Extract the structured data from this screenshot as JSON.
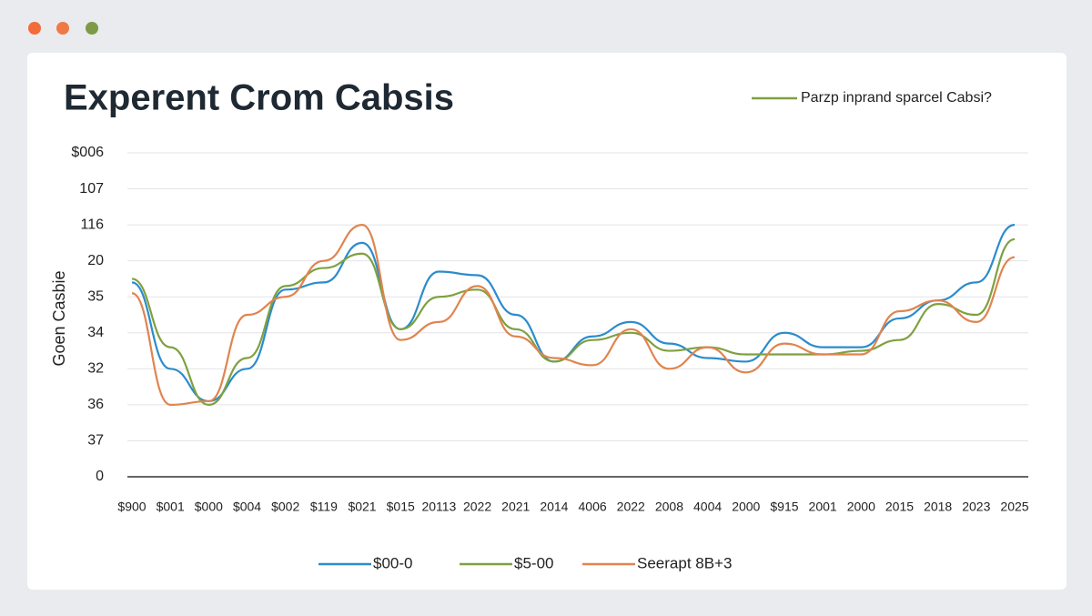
{
  "chart_data": {
    "type": "line",
    "title": "Experent Crom Cabsis",
    "annotation": "Parzp inprand sparcel Cabsi?",
    "y_label": "Goen Casbie",
    "categories": [
      "$900",
      "$001",
      "$000",
      "$004",
      "$002",
      "$119",
      "$021",
      "$015",
      "20113",
      "2022",
      "2021",
      "2014",
      "4006",
      "2022",
      "2008",
      "4004",
      "2000",
      "$915",
      "2001",
      "2000",
      "2015",
      "2018",
      "2023",
      "2025"
    ],
    "series": [
      {
        "name": "$00-0",
        "color": "#2b8ccc",
        "values": [
          5.4,
          3.0,
          2.1,
          3.0,
          5.2,
          5.4,
          6.5,
          4.1,
          5.7,
          5.6,
          4.5,
          3.2,
          3.9,
          4.3,
          3.7,
          3.3,
          3.2,
          4.0,
          3.6,
          3.6,
          4.4,
          4.9,
          5.4,
          7.0
        ]
      },
      {
        "name": "$5-00",
        "color": "#7fa040",
        "values": [
          5.5,
          3.6,
          2.0,
          3.3,
          5.3,
          5.8,
          6.2,
          4.1,
          5.0,
          5.2,
          4.1,
          3.2,
          3.8,
          4.0,
          3.5,
          3.6,
          3.4,
          3.4,
          3.4,
          3.5,
          3.8,
          4.8,
          4.5,
          6.6
        ]
      },
      {
        "name": "Seerapt 8B+3",
        "color": "#e0844f",
        "values": [
          5.1,
          2.0,
          2.1,
          4.5,
          5.0,
          6.0,
          7.0,
          3.8,
          4.3,
          5.3,
          3.9,
          3.3,
          3.1,
          4.1,
          3.0,
          3.6,
          2.9,
          3.7,
          3.4,
          3.4,
          4.6,
          4.9,
          4.3,
          6.1
        ]
      }
    ],
    "ylim": [
      0,
      9
    ],
    "yticks": [
      0,
      {
        "value": 1,
        "label": "37"
      },
      {
        "value": 2,
        "label": "36"
      },
      {
        "value": 3,
        "label": "32"
      },
      {
        "value": 4,
        "label": "34"
      },
      {
        "value": 5,
        "label": "35"
      },
      {
        "value": 6,
        "label": "20"
      },
      {
        "value": 7,
        "label": "116"
      },
      {
        "value": 8,
        "label": "107"
      },
      {
        "value": 9,
        "label": "$006"
      }
    ],
    "grid": true
  }
}
